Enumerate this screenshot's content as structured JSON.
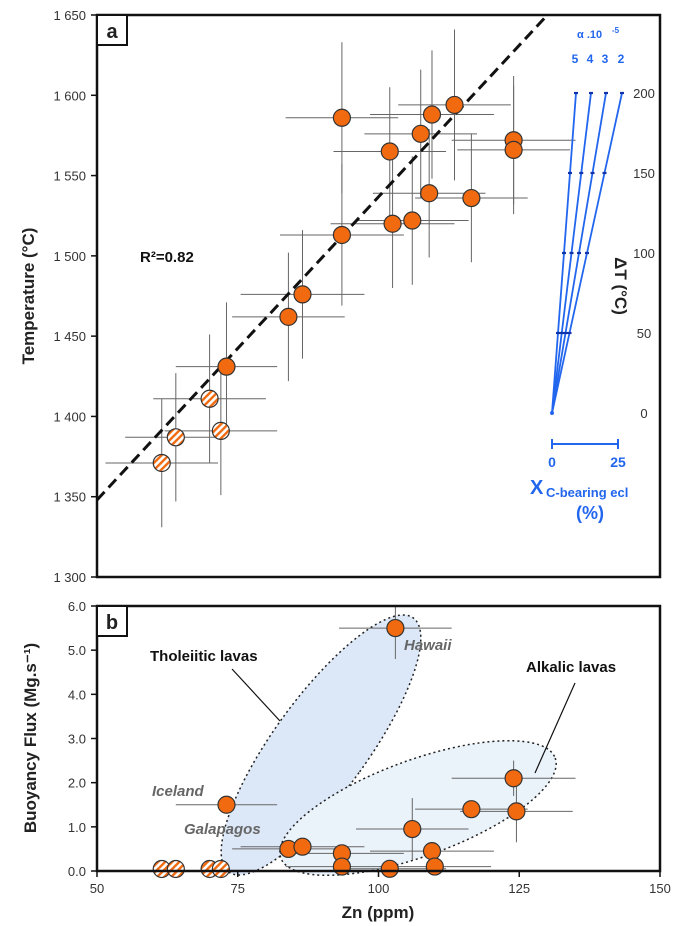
{
  "colors": {
    "point_fill": "#f26a10",
    "point_stroke": "#333333",
    "hatch": "#f26a10",
    "blue": "#2266ee",
    "tholeiitic_fill": "#dce8f8",
    "alkalic_fill": "#eaf2fa"
  },
  "chart_data": [
    {
      "panel": "a",
      "type": "scatter",
      "ylabel": "Temperature (°C)",
      "xlim": [
        50,
        150
      ],
      "ylim": [
        1300,
        1650
      ],
      "y_ticks": [
        "1 300",
        "1 350",
        "1 400",
        "1 450",
        "1 500",
        "1 550",
        "1 600",
        "1 650"
      ],
      "regression": {
        "label": "R²=0.82",
        "x": [
          50,
          130
        ],
        "y": [
          1348,
          1650
        ]
      },
      "points": [
        {
          "x": 61.5,
          "y": 1371,
          "hatched": true,
          "xe": 10,
          "ye": 40
        },
        {
          "x": 64,
          "y": 1387,
          "hatched": true,
          "xe": 9,
          "ye": 40
        },
        {
          "x": 70,
          "y": 1411,
          "hatched": true,
          "xe": 10,
          "ye": 40
        },
        {
          "x": 72,
          "y": 1391,
          "hatched": true,
          "xe": 10,
          "ye": 40
        },
        {
          "x": 73,
          "y": 1431,
          "hatched": false,
          "xe": 9,
          "ye": 40
        },
        {
          "x": 84,
          "y": 1462,
          "hatched": false,
          "xe": 10,
          "ye": 40
        },
        {
          "x": 86.5,
          "y": 1476,
          "hatched": false,
          "xe": 11,
          "ye": 40
        },
        {
          "x": 93.5,
          "y": 1513,
          "hatched": false,
          "xe": 11,
          "ye": 44
        },
        {
          "x": 93.5,
          "y": 1586,
          "hatched": false,
          "xe": 10,
          "ye": 47
        },
        {
          "x": 102,
          "y": 1565,
          "hatched": false,
          "xe": 10,
          "ye": 40
        },
        {
          "x": 102.5,
          "y": 1520,
          "hatched": false,
          "xe": 11,
          "ye": 40
        },
        {
          "x": 106,
          "y": 1522,
          "hatched": false,
          "xe": 10,
          "ye": 40
        },
        {
          "x": 107.5,
          "y": 1576,
          "hatched": false,
          "xe": 10,
          "ye": 40
        },
        {
          "x": 109,
          "y": 1539,
          "hatched": false,
          "xe": 10,
          "ye": 40
        },
        {
          "x": 109.5,
          "y": 1588,
          "hatched": false,
          "xe": 11,
          "ye": 40
        },
        {
          "x": 113.5,
          "y": 1594,
          "hatched": false,
          "xe": 10,
          "ye": 47
        },
        {
          "x": 116.5,
          "y": 1536,
          "hatched": false,
          "xe": 10,
          "ye": 40
        },
        {
          "x": 124,
          "y": 1572,
          "hatched": false,
          "xe": 11,
          "ye": 40
        },
        {
          "x": 124,
          "y": 1566,
          "hatched": false,
          "xe": 10,
          "ye": 40
        }
      ],
      "inset": {
        "alpha_label": "α .10",
        "alpha_exp": "-5",
        "alpha_values": [
          "5",
          "4",
          "3",
          "2"
        ],
        "dT_label": "ΔT (°C)",
        "dT_ticks": [
          "0",
          "50",
          "100",
          "150",
          "200"
        ],
        "x_ticks": [
          "0",
          "25"
        ],
        "x_label_main": "X",
        "x_label_sub": "C-bearing ecl",
        "x_label_unit": "(%)"
      }
    },
    {
      "panel": "b",
      "type": "scatter",
      "xlabel": "Zn (ppm)",
      "ylabel": "Buoyancy Flux (Mg.s⁻¹)",
      "xlim": [
        50,
        150
      ],
      "ylim": [
        0,
        6
      ],
      "x_ticks": [
        "50",
        "75",
        "100",
        "125",
        "150"
      ],
      "y_ticks": [
        "0.0",
        "1.0",
        "2.0",
        "3.0",
        "4.0",
        "5.0",
        "6.0"
      ],
      "groups": [
        "Tholeiitic lavas",
        "Alkalic lavas"
      ],
      "labels": [
        "Hawaii",
        "Iceland",
        "Galapagos"
      ],
      "points": [
        {
          "x": 61.5,
          "y": 0,
          "hatched": true
        },
        {
          "x": 64,
          "y": 0,
          "hatched": true
        },
        {
          "x": 70,
          "y": 0,
          "hatched": true
        },
        {
          "x": 72,
          "y": 0,
          "hatched": true
        },
        {
          "x": 73,
          "y": 1.5,
          "hatched": false,
          "xe": 9
        },
        {
          "x": 84,
          "y": 0.5,
          "hatched": false,
          "xe": 10
        },
        {
          "x": 86.5,
          "y": 0.55,
          "hatched": false,
          "xe": 11
        },
        {
          "x": 93.5,
          "y": 0.4,
          "hatched": false,
          "xe": 11
        },
        {
          "x": 93.5,
          "y": 0.1,
          "hatched": false,
          "xe": 10
        },
        {
          "x": 102,
          "y": 0.05,
          "hatched": false,
          "xe": 10
        },
        {
          "x": 103,
          "y": 5.5,
          "hatched": false,
          "xe": 10,
          "ye": 0.7
        },
        {
          "x": 106,
          "y": 0.95,
          "hatched": false,
          "xe": 10,
          "ye": 0.7
        },
        {
          "x": 109.5,
          "y": 0.45,
          "hatched": false,
          "xe": 11
        },
        {
          "x": 110,
          "y": 0.1,
          "hatched": false,
          "xe": 10
        },
        {
          "x": 116.5,
          "y": 1.4,
          "hatched": false,
          "xe": 10
        },
        {
          "x": 124,
          "y": 2.1,
          "hatched": false,
          "xe": 11,
          "ye": 0.4
        },
        {
          "x": 124.5,
          "y": 1.35,
          "hatched": false,
          "xe": 10,
          "ye": 0.7
        }
      ]
    }
  ]
}
